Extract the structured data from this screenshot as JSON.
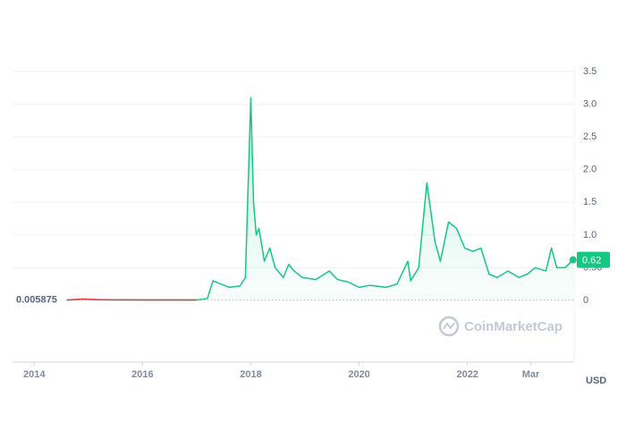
{
  "chart_data": {
    "type": "line",
    "x": [
      2014.6,
      2014.9,
      2015.2,
      2015.5,
      2016.0,
      2016.5,
      2017.0,
      2017.2,
      2017.3,
      2017.45,
      2017.6,
      2017.8,
      2017.9,
      2018.0,
      2018.05,
      2018.1,
      2018.15,
      2018.25,
      2018.35,
      2018.45,
      2018.6,
      2018.7,
      2018.8,
      2018.95,
      2019.2,
      2019.45,
      2019.6,
      2019.8,
      2020.0,
      2020.2,
      2020.5,
      2020.7,
      2020.9,
      2020.95,
      2021.1,
      2021.25,
      2021.3,
      2021.4,
      2021.5,
      2021.65,
      2021.8,
      2021.95,
      2022.1,
      2022.25,
      2022.4,
      2022.55,
      2022.75,
      2022.95,
      2023.1,
      2023.25,
      2023.45,
      2023.55,
      2023.65,
      2023.8,
      2023.95
    ],
    "series": [
      {
        "values": [
          0.005,
          0.02,
          0.01,
          0.008,
          0.006,
          0.006,
          0.006,
          0.03,
          0.3,
          0.25,
          0.2,
          0.22,
          0.35,
          3.1,
          1.5,
          1.0,
          1.1,
          0.6,
          0.8,
          0.5,
          0.35,
          0.55,
          0.45,
          0.35,
          0.32,
          0.45,
          0.32,
          0.28,
          0.2,
          0.23,
          0.2,
          0.25,
          0.6,
          0.3,
          0.5,
          1.8,
          1.5,
          0.9,
          0.6,
          1.2,
          1.1,
          0.8,
          0.75,
          0.8,
          0.4,
          0.35,
          0.45,
          0.35,
          0.4,
          0.5,
          0.45,
          0.8,
          0.5,
          0.5,
          0.62
        ],
        "color": "#16c784"
      }
    ],
    "down_color": "#ea3943",
    "baseline": 0.005875,
    "xlim": [
      2013.6,
      2023.97
    ],
    "xticks": [
      2014,
      2016,
      2018,
      2020,
      2022,
      {
        "value": 2023.17,
        "label": "Mar"
      }
    ],
    "ylim": [
      0,
      3.5
    ],
    "yticks": [
      0,
      {
        "value": 0.5,
        "label": "0.50"
      },
      {
        "value": 1,
        "label": "1.0"
      },
      1.5,
      {
        "value": 2,
        "label": "2.0"
      },
      2.5,
      {
        "value": 3,
        "label": "3.0"
      },
      3.5
    ],
    "grid": true,
    "currency": "USD",
    "watermark": "CoinMarketCap"
  }
}
